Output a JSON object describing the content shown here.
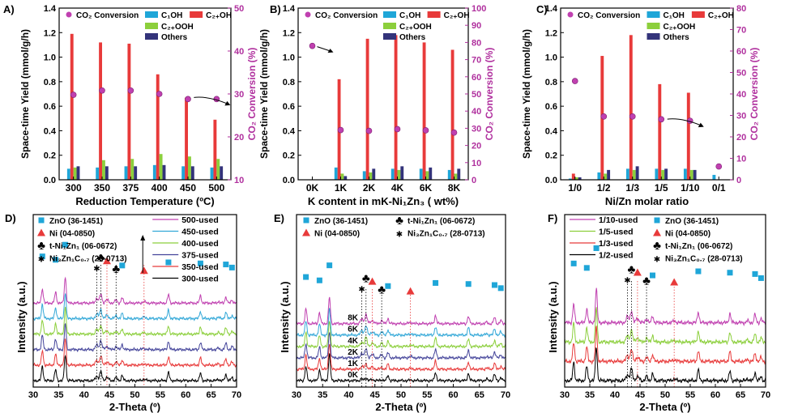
{
  "chart_data": [
    {
      "panel": "A)",
      "type": "bar",
      "xlabel": "Reduction Temperature (ºC)",
      "ylabel": "Space-time Yield (mmol/g/h)",
      "y2label": "CO₂ Conversion (%)",
      "categories": [
        "300",
        "350",
        "375",
        "400",
        "450",
        "500"
      ],
      "ylim": [
        0,
        1.4
      ],
      "yticks": [
        "0.0",
        "0.2",
        "0.4",
        "0.6",
        "0.8",
        "1.0",
        "1.2",
        "1.4"
      ],
      "y2lim": [
        10,
        50
      ],
      "y2ticks": [
        "10",
        "20",
        "30",
        "40",
        "50"
      ],
      "series": [
        {
          "name": "C₁OH",
          "color": "#1fa6d8",
          "values": [
            0.09,
            0.1,
            0.11,
            0.12,
            0.11,
            0.1
          ]
        },
        {
          "name": "C₂₊OH",
          "color": "#e83a3a",
          "values": [
            1.19,
            1.12,
            1.11,
            0.86,
            0.67,
            0.49
          ]
        },
        {
          "name": "C₂₊OOH",
          "color": "#8ccf3c",
          "values": [
            0.1,
            0.16,
            0.17,
            0.21,
            0.19,
            0.17
          ]
        },
        {
          "name": "Others",
          "color": "#33337a",
          "values": [
            0.11,
            0.11,
            0.11,
            0.12,
            0.11,
            0.11
          ]
        }
      ],
      "conversion": {
        "name": "CO₂ Conversion",
        "color": "#c040b0",
        "values": [
          29.8,
          30.8,
          30.8,
          30.0,
          28.8,
          28.8
        ]
      },
      "arrow": "right"
    },
    {
      "panel": "B)",
      "type": "bar",
      "xlabel": "K content in mK-Ni₁Zn₃ ( wt%)",
      "ylabel": "Space-time Yield (mmol/g/h)",
      "y2label": "CO₂ Conversion (%)",
      "categories": [
        "0K",
        "1K",
        "2K",
        "4K",
        "6K",
        "8K"
      ],
      "ylim": [
        0,
        1.4
      ],
      "yticks": [
        "0.0",
        "0.2",
        "0.4",
        "0.6",
        "0.8",
        "1.0",
        "1.2",
        "1.4"
      ],
      "y2lim": [
        0,
        100
      ],
      "y2ticks": [
        "0",
        "10",
        "20",
        "30",
        "40",
        "50",
        "60",
        "70",
        "80",
        "90",
        "100"
      ],
      "series": [
        {
          "name": "C₁OH",
          "color": "#1fa6d8",
          "values": [
            0,
            0.1,
            0.07,
            0.09,
            0.09,
            0.08
          ]
        },
        {
          "name": "C₂₊OH",
          "color": "#e83a3a",
          "values": [
            0,
            0.82,
            1.15,
            1.18,
            1.12,
            1.06
          ]
        },
        {
          "name": "C₂₊OOH",
          "color": "#8ccf3c",
          "values": [
            0,
            0.05,
            0.06,
            0.08,
            0.07,
            0.05
          ]
        },
        {
          "name": "Others",
          "color": "#33337a",
          "values": [
            0,
            0.03,
            0.09,
            0.11,
            0.1,
            0.09
          ]
        }
      ],
      "conversion": {
        "name": "CO₂ Conversion",
        "color": "#c040b0",
        "values": [
          78,
          29,
          28.5,
          29.5,
          28.8,
          27.5
        ]
      },
      "arrow": "left"
    },
    {
      "panel": "C)",
      "type": "bar",
      "xlabel": "Ni/Zn molar ratio",
      "ylabel": "Space-time Yield (mmol/g/h)",
      "y2label": "CO₂ Conversion (%)",
      "categories": [
        "1/0",
        "1/2",
        "1/3",
        "1/5",
        "1/10",
        "0/1"
      ],
      "ylim": [
        0,
        1.4
      ],
      "yticks": [
        "0.0",
        "0.2",
        "0.4",
        "0.6",
        "0.8",
        "1.0",
        "1.2",
        "1.4"
      ],
      "y2lim": [
        0,
        80
      ],
      "y2ticks": [
        "0",
        "10",
        "20",
        "30",
        "40",
        "50",
        "60",
        "70",
        "80"
      ],
      "series": [
        {
          "name": "C₁OH",
          "color": "#1fa6d8",
          "values": [
            0.01,
            0.06,
            0.09,
            0.09,
            0.09,
            0.04
          ]
        },
        {
          "name": "C₂₊OH",
          "color": "#e83a3a",
          "values": [
            0.05,
            1.01,
            1.18,
            0.78,
            0.71,
            0
          ]
        },
        {
          "name": "C₂₊OOH",
          "color": "#8ccf3c",
          "values": [
            0.02,
            0.05,
            0.08,
            0.08,
            0.08,
            0
          ]
        },
        {
          "name": "Others",
          "color": "#33337a",
          "values": [
            0.02,
            0.08,
            0.11,
            0.09,
            0.08,
            0
          ]
        }
      ],
      "conversion": {
        "name": "CO₂ Conversion",
        "color": "#c040b0",
        "values": [
          46,
          29.5,
          29.5,
          28.2,
          27.5,
          6.2
        ]
      },
      "arrow": "right"
    },
    {
      "panel": "D)",
      "type": "line",
      "xlabel": "2-Theta (º)",
      "ylabel": "Intensity (a.u.)",
      "xlim": [
        30,
        70
      ],
      "xticks": [
        "30",
        "35",
        "40",
        "45",
        "50",
        "55",
        "60",
        "65",
        "70"
      ],
      "phases": [
        {
          "marker": "square",
          "label": "ZnO (36-1451)",
          "color": "#1fa6d8"
        },
        {
          "marker": "triangle",
          "label": "Ni  (04-0850)",
          "color": "#e83a3a"
        },
        {
          "marker": "club",
          "label": "t-Ni₁Zn₁ (06-0672)",
          "color": "#000000"
        },
        {
          "marker": "asterisk",
          "label": "Ni₃Zn₁C₀.₇ (28-0713)",
          "color": "#000000"
        }
      ],
      "series": [
        {
          "name": "500-used",
          "color": "#c040b0"
        },
        {
          "name": "450-used",
          "color": "#33a8d8"
        },
        {
          "name": "400-used",
          "color": "#8ccf3c"
        },
        {
          "name": "375-used",
          "color": "#44449a"
        },
        {
          "name": "350-used",
          "color": "#e83a3a"
        },
        {
          "name": "300-used",
          "color": "#000000"
        }
      ]
    },
    {
      "panel": "E)",
      "type": "line",
      "xlabel": "2-Theta (º)",
      "ylabel": "Intensity (a.u.)",
      "xlim": [
        30,
        70
      ],
      "xticks": [
        "30",
        "35",
        "40",
        "45",
        "50",
        "55",
        "60",
        "65",
        "70"
      ],
      "phases": [
        {
          "marker": "square",
          "label": "ZnO (36-1451)",
          "color": "#1fa6d8"
        },
        {
          "marker": "club",
          "label": "t-Ni₁Zn₁ (06-0672)",
          "color": "#000000"
        },
        {
          "marker": "triangle",
          "label": "Ni  (04-0850)",
          "color": "#e83a3a"
        },
        {
          "marker": "asterisk",
          "label": "Ni₃Zn₁C₀.₇ (28-0713)",
          "color": "#000000"
        }
      ],
      "series": [
        {
          "name": "8K",
          "color": "#c040b0"
        },
        {
          "name": "6K",
          "color": "#33a8d8"
        },
        {
          "name": "4K",
          "color": "#8ccf3c"
        },
        {
          "name": "2K",
          "color": "#44449a"
        },
        {
          "name": "1K",
          "color": "#e83a3a"
        },
        {
          "name": "0K",
          "color": "#000000"
        }
      ]
    },
    {
      "panel": "F)",
      "type": "line",
      "xlabel": "2-Theta (º)",
      "ylabel": "Intensity (a.u.)",
      "xlim": [
        30,
        70
      ],
      "xticks": [
        "30",
        "35",
        "40",
        "45",
        "50",
        "55",
        "60",
        "65",
        "70"
      ],
      "phases": [
        {
          "marker": "square",
          "label": "ZnO (36-1451)",
          "color": "#1fa6d8"
        },
        {
          "marker": "triangle",
          "label": "Ni  (04-0850)",
          "color": "#e83a3a"
        },
        {
          "marker": "club",
          "label": "t-Ni₁Zn₁ (06-0672)",
          "color": "#000000"
        },
        {
          "marker": "asterisk",
          "label": "Ni₃Zn₁C₀.₇ (28-0713)",
          "color": "#000000"
        }
      ],
      "series": [
        {
          "name": "1/10-used",
          "color": "#c040b0"
        },
        {
          "name": "1/5-used",
          "color": "#8ccf3c"
        },
        {
          "name": "1/3-used",
          "color": "#e83a3a"
        },
        {
          "name": "1/2-used",
          "color": "#000000"
        }
      ]
    }
  ]
}
